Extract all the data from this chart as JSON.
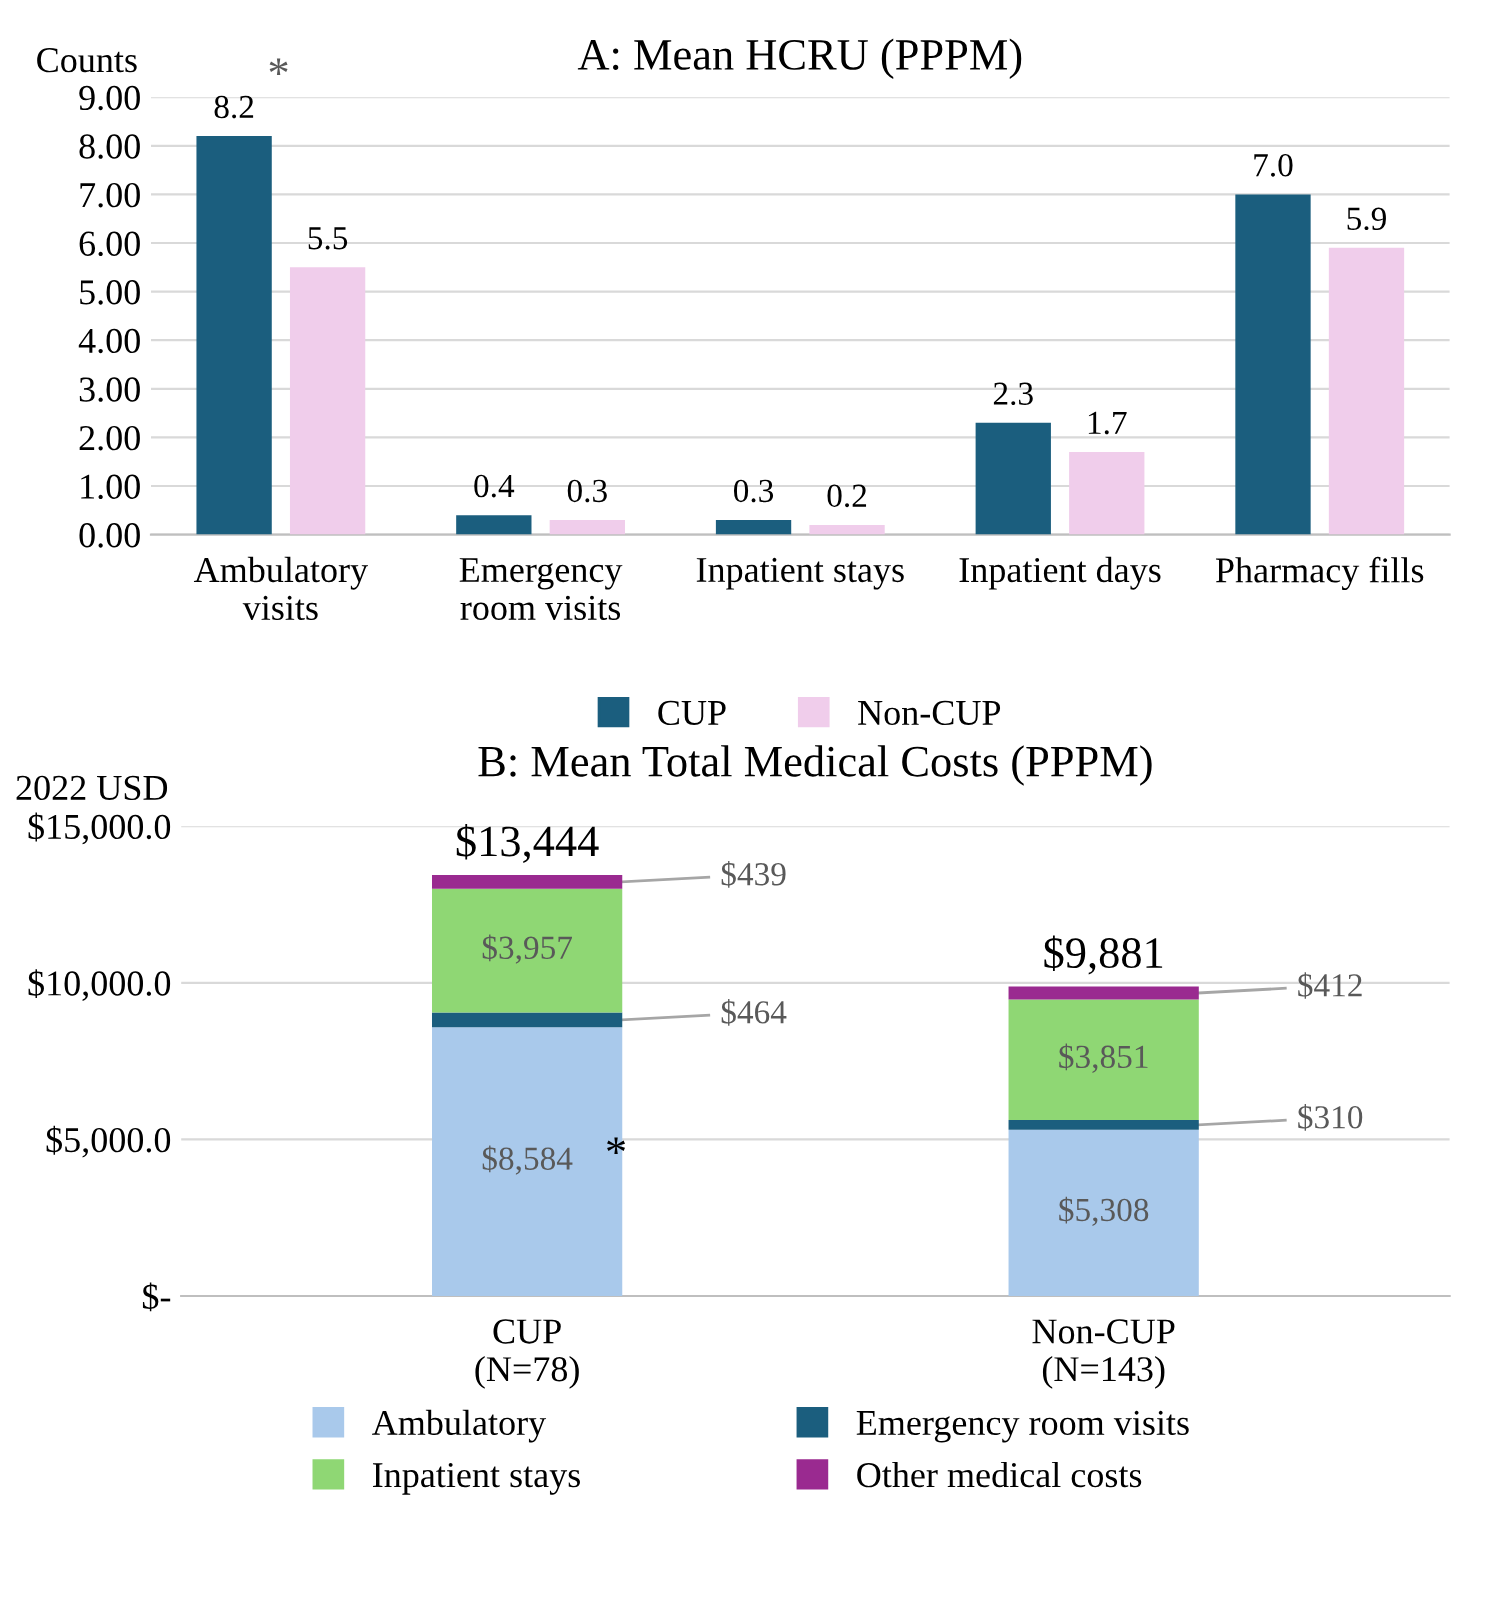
{
  "chart_data": [
    {
      "type": "bar",
      "title": "A: Mean HCRU (PPPM)",
      "ylabel": "Counts",
      "categories": [
        "Ambulatory\nvisits",
        "Emergency\nroom visits",
        "Inpatient stays",
        "Inpatient days",
        "Pharmacy fills"
      ],
      "series": [
        {
          "name": "CUP",
          "color": "#1b5e7e",
          "values": [
            8.2,
            0.4,
            0.3,
            2.3,
            7.0
          ],
          "value_labels": [
            "8.2",
            "0.4",
            "0.3",
            "2.3",
            "7.0"
          ]
        },
        {
          "name": "Non-CUP",
          "color": "#f0cdeb",
          "values": [
            5.5,
            0.3,
            0.2,
            1.7,
            5.9
          ],
          "value_labels": [
            "5.5",
            "0.3",
            "0.2",
            "1.7",
            "5.9"
          ]
        }
      ],
      "annotations": [
        {
          "text": "*",
          "x": "Ambulatory\nvisits",
          "y": 8.2
        }
      ],
      "ylim": [
        0,
        9
      ],
      "yticks": [
        {
          "value": 0,
          "label": "0.00"
        },
        {
          "value": 1,
          "label": "1.00"
        },
        {
          "value": 2,
          "label": "2.00"
        },
        {
          "value": 3,
          "label": "3.00"
        },
        {
          "value": 4,
          "label": "4.00"
        },
        {
          "value": 5,
          "label": "5.00"
        },
        {
          "value": 6,
          "label": "6.00"
        },
        {
          "value": 7,
          "label": "7.00"
        },
        {
          "value": 8,
          "label": "8.00"
        },
        {
          "value": 9,
          "label": "9.00"
        }
      ],
      "grid": "y",
      "legend": "bottom"
    },
    {
      "type": "bar",
      "stacked": true,
      "title": "B: Mean Total Medical Costs (PPPM)",
      "ylabel": "2022 USD",
      "categories": [
        "CUP\n(N=78)",
        "Non-CUP\n(N=143)"
      ],
      "series": [
        {
          "name": "Ambulatory",
          "color": "#a9c9eb",
          "values": [
            8584,
            5308
          ],
          "value_labels": [
            "$8,584",
            "$5,308"
          ]
        },
        {
          "name": "Emergency room visits",
          "color": "#1b5e7e",
          "values": [
            464,
            310
          ],
          "value_labels": [
            "$464",
            "$310"
          ]
        },
        {
          "name": "Inpatient stays",
          "color": "#8fd774",
          "values": [
            3957,
            3851
          ],
          "value_labels": [
            "$3,957",
            "$3,851"
          ]
        },
        {
          "name": "Other medical costs",
          "color": "#9a2a90",
          "values": [
            439,
            412
          ],
          "value_labels": [
            "$439",
            "$412"
          ]
        }
      ],
      "totals": [
        "$13,444",
        "$9,881"
      ],
      "annotations": [
        "*"
      ],
      "ylim": [
        0,
        15000
      ],
      "yticks": [
        {
          "value": 0,
          "label": "$-"
        },
        {
          "value": 5000,
          "label": "$5,000.0"
        },
        {
          "value": 10000,
          "label": "$10,000.0"
        },
        {
          "value": 15000,
          "label": "$15,000.0"
        }
      ],
      "grid": "y",
      "legend": "bottom"
    }
  ]
}
